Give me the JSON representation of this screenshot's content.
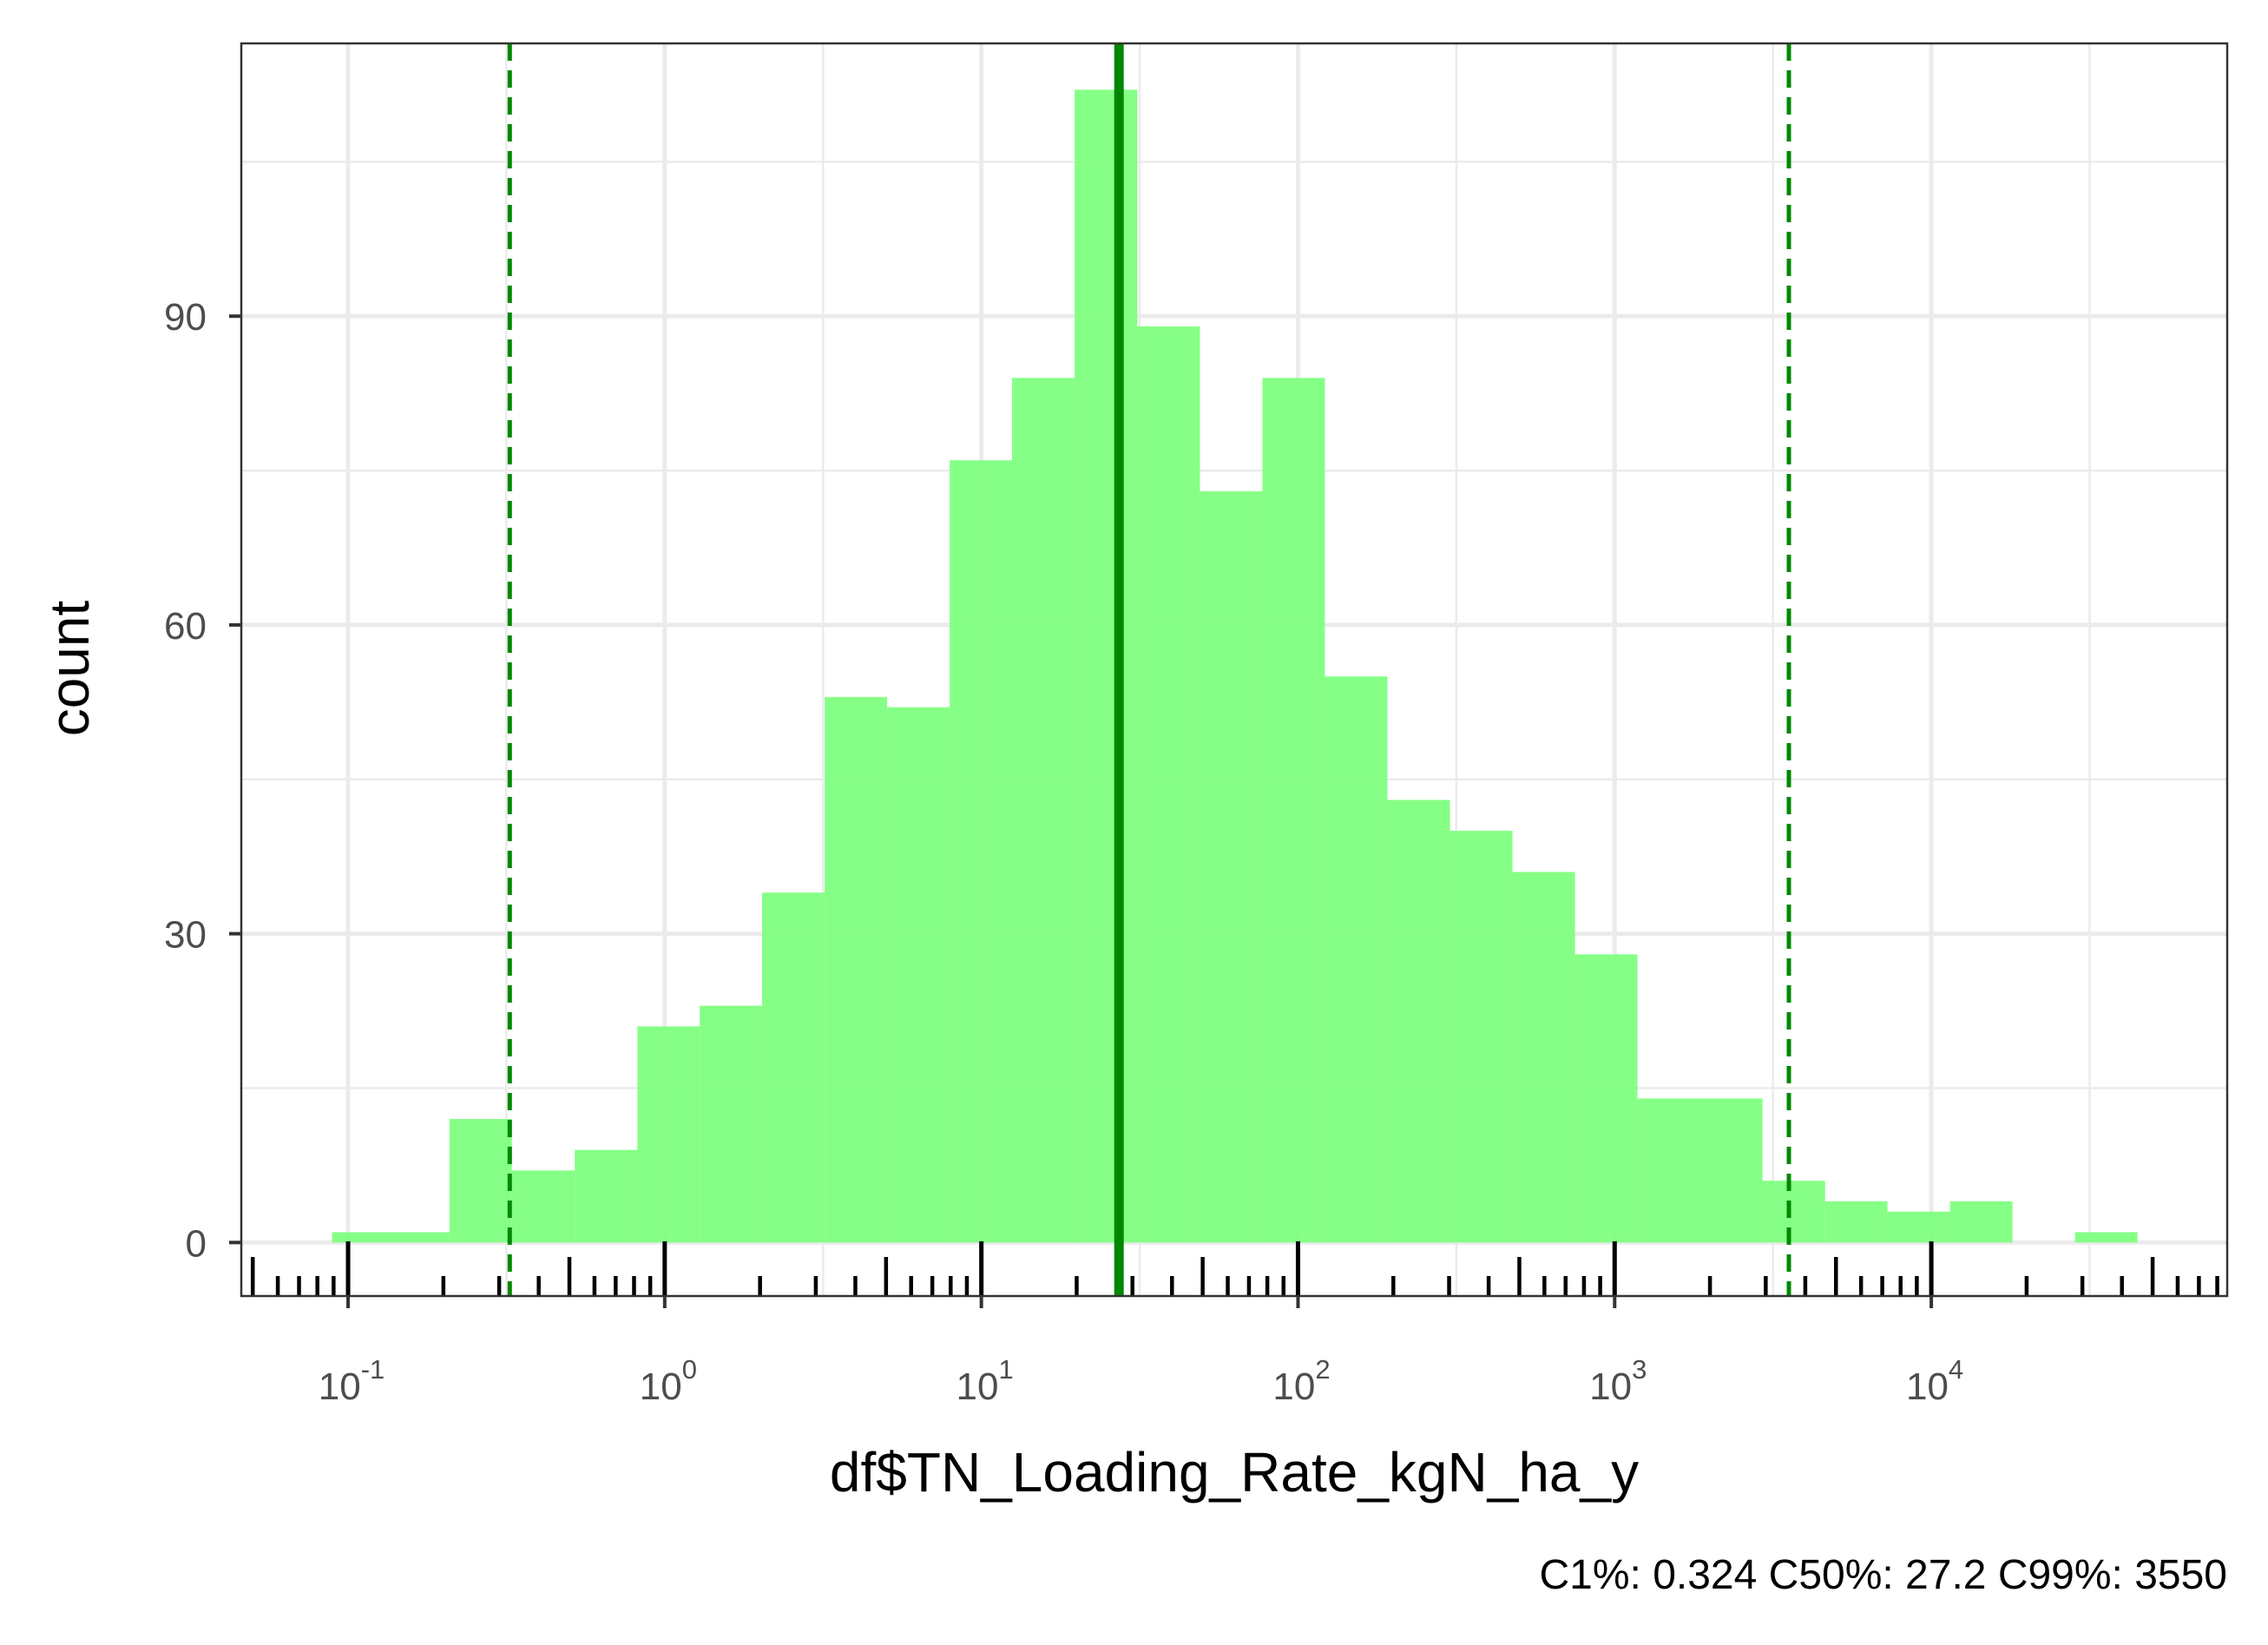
{
  "chart_data": {
    "type": "bar",
    "subtype": "histogram",
    "x_scale": "log10",
    "xlabel": "df$TN_Loading_Rate_kgN_ha_y",
    "ylabel": "count",
    "caption": "C1%: 0.324 C50%: 27.2 C99%: 3550",
    "x_ticks": [
      {
        "base": "10",
        "exp": "-1",
        "value": 0.1
      },
      {
        "base": "10",
        "exp": "0",
        "value": 1
      },
      {
        "base": "10",
        "exp": "1",
        "value": 10
      },
      {
        "base": "10",
        "exp": "2",
        "value": 100
      },
      {
        "base": "10",
        "exp": "3",
        "value": 1000
      },
      {
        "base": "10",
        "exp": "4",
        "value": 10000
      }
    ],
    "y_ticks": [
      "0",
      "30",
      "60",
      "90"
    ],
    "xlim": [
      0.046,
      86000
    ],
    "ylim": [
      -5.2,
      116.5
    ],
    "bar_color": "#80ff80",
    "line_color": "#008800",
    "grid": true,
    "bins": [
      {
        "x0": 0.089,
        "x1": 0.209,
        "count": 1
      },
      {
        "x0": 0.209,
        "x1": 0.329,
        "count": 12
      },
      {
        "x0": 0.329,
        "x1": 0.52,
        "count": 7
      },
      {
        "x0": 0.52,
        "x1": 0.82,
        "count": 9
      },
      {
        "x0": 0.82,
        "x1": 1.29,
        "count": 21
      },
      {
        "x0": 1.29,
        "x1": 2.03,
        "count": 23
      },
      {
        "x0": 2.03,
        "x1": 3.2,
        "count": 34
      },
      {
        "x0": 3.2,
        "x1": 5.04,
        "count": 53
      },
      {
        "x0": 5.04,
        "x1": 7.94,
        "count": 52
      },
      {
        "x0": 7.94,
        "x1": 12.5,
        "count": 76
      },
      {
        "x0": 12.5,
        "x1": 19.7,
        "count": 84
      },
      {
        "x0": 19.7,
        "x1": 31.1,
        "count": 112
      },
      {
        "x0": 31.1,
        "x1": 49.0,
        "count": 89
      },
      {
        "x0": 49.0,
        "x1": 77.2,
        "count": 73
      },
      {
        "x0": 77.2,
        "x1": 121.6,
        "count": 84
      },
      {
        "x0": 121.6,
        "x1": 191.6,
        "count": 55
      },
      {
        "x0": 191.6,
        "x1": 301.9,
        "count": 43
      },
      {
        "x0": 301.9,
        "x1": 475.6,
        "count": 40
      },
      {
        "x0": 475.6,
        "x1": 749.4,
        "count": 36
      },
      {
        "x0": 749.4,
        "x1": 1180.6,
        "count": 28
      },
      {
        "x0": 1180.6,
        "x1": 2930,
        "count": 14
      },
      {
        "x0": 2930,
        "x1": 4620,
        "count": 6
      },
      {
        "x0": 4620,
        "x1": 7270,
        "count": 4
      },
      {
        "x0": 7270,
        "x1": 11460,
        "count": 3
      },
      {
        "x0": 11460,
        "x1": 18050,
        "count": 4
      },
      {
        "x0": 28440,
        "x1": 44800,
        "count": 1
      }
    ],
    "reference_lines": [
      {
        "label": "C1%",
        "value": 0.324,
        "style": "dashed"
      },
      {
        "label": "C50%",
        "value": 27.2,
        "style": "solid"
      },
      {
        "label": "C99%",
        "value": 3550,
        "style": "dashed"
      }
    ]
  }
}
